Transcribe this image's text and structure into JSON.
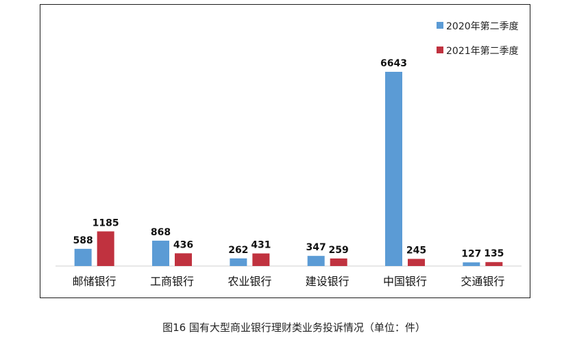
{
  "chart_data": {
    "type": "bar",
    "categories": [
      "邮储银行",
      "工商银行",
      "农业银行",
      "建设银行",
      "中国银行",
      "交通银行"
    ],
    "series": [
      {
        "name": "2020年第二季度",
        "values": [
          588,
          868,
          262,
          347,
          6643,
          127
        ]
      },
      {
        "name": "2021年第二季度",
        "values": [
          1185,
          436,
          431,
          259,
          245,
          135
        ]
      }
    ],
    "colors": [
      "#5b9bd5",
      "#c0323f"
    ],
    "ylim": [
      0,
      7200
    ],
    "legend_position": "top-right",
    "grid": false,
    "show_data_labels": true
  },
  "caption": "图16  国有大型商业银行理财类业务投诉情况（单位：件）"
}
